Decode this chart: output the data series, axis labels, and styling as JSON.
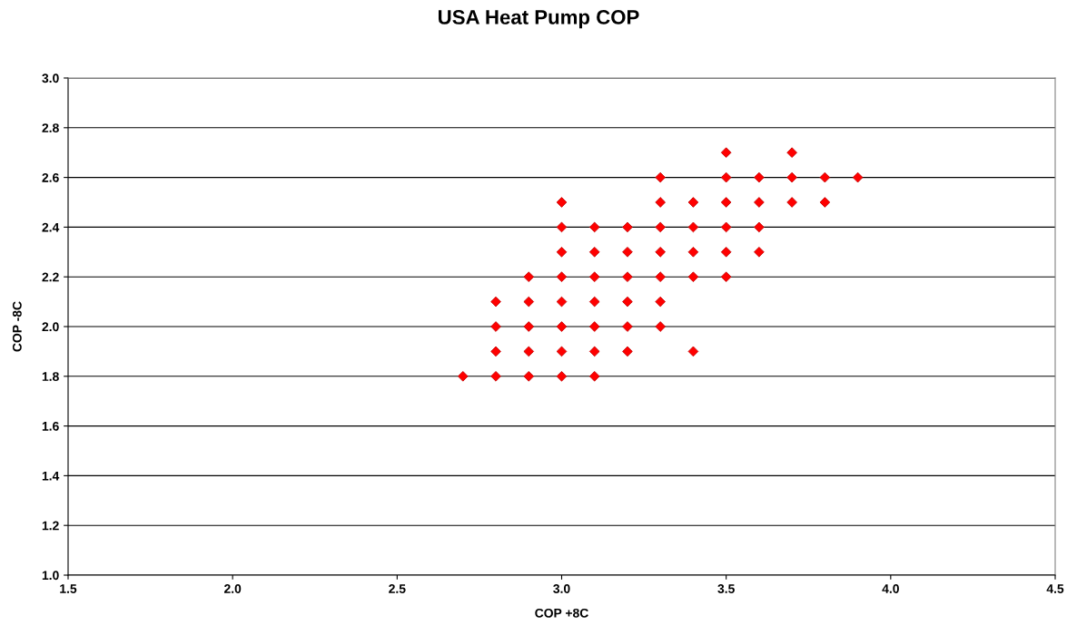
{
  "chart_data": {
    "type": "scatter",
    "title": "USA Heat Pump COP",
    "xlabel": "COP +8C",
    "ylabel": "COP -8C",
    "xlim": [
      1.5,
      4.5
    ],
    "xticks": [
      1.5,
      {
        "value": 2,
        "label": "2.0"
      },
      2.5,
      {
        "value": 3,
        "label": "3.0"
      },
      3.5,
      {
        "value": 4,
        "label": "4.0"
      },
      4.5
    ],
    "ylim": [
      1.0,
      3.0
    ],
    "yticks": [
      {
        "value": 1,
        "label": "1.0"
      },
      1.2,
      1.4,
      1.6,
      1.8,
      {
        "value": 2,
        "label": "2.0"
      },
      2.2,
      2.4,
      2.6,
      2.8,
      {
        "value": 3,
        "label": "3.0"
      }
    ],
    "grid": "y",
    "marker": "diamond",
    "series": [
      {
        "color": "#ff0000",
        "x": [
          3.5,
          3.7,
          3.3,
          3.5,
          3.6,
          3.7,
          3.8,
          3.9,
          3.0,
          3.3,
          3.4,
          3.5,
          3.6,
          3.7,
          3.8,
          3.0,
          3.1,
          3.2,
          3.3,
          3.4,
          3.5,
          3.6,
          3.0,
          3.1,
          3.2,
          3.3,
          3.4,
          3.5,
          3.6,
          2.9,
          3.0,
          3.1,
          3.2,
          3.3,
          3.4,
          3.5,
          2.8,
          2.9,
          3.0,
          3.1,
          3.2,
          3.3,
          2.8,
          2.9,
          3.0,
          3.1,
          3.2,
          3.3,
          2.8,
          2.9,
          3.0,
          3.1,
          3.2,
          3.4,
          2.7,
          2.8,
          2.9,
          3.0,
          3.1
        ],
        "values": [
          2.7,
          2.7,
          2.6,
          2.6,
          2.6,
          2.6,
          2.6,
          2.6,
          2.5,
          2.5,
          2.5,
          2.5,
          2.5,
          2.5,
          2.5,
          2.4,
          2.4,
          2.4,
          2.4,
          2.4,
          2.4,
          2.4,
          2.3,
          2.3,
          2.3,
          2.3,
          2.3,
          2.3,
          2.3,
          2.2,
          2.2,
          2.2,
          2.2,
          2.2,
          2.2,
          2.2,
          2.1,
          2.1,
          2.1,
          2.1,
          2.1,
          2.1,
          2.0,
          2.0,
          2.0,
          2.0,
          2.0,
          2.0,
          1.9,
          1.9,
          1.9,
          1.9,
          1.9,
          1.9,
          1.8,
          1.8,
          1.8,
          1.8,
          1.8
        ]
      }
    ]
  }
}
